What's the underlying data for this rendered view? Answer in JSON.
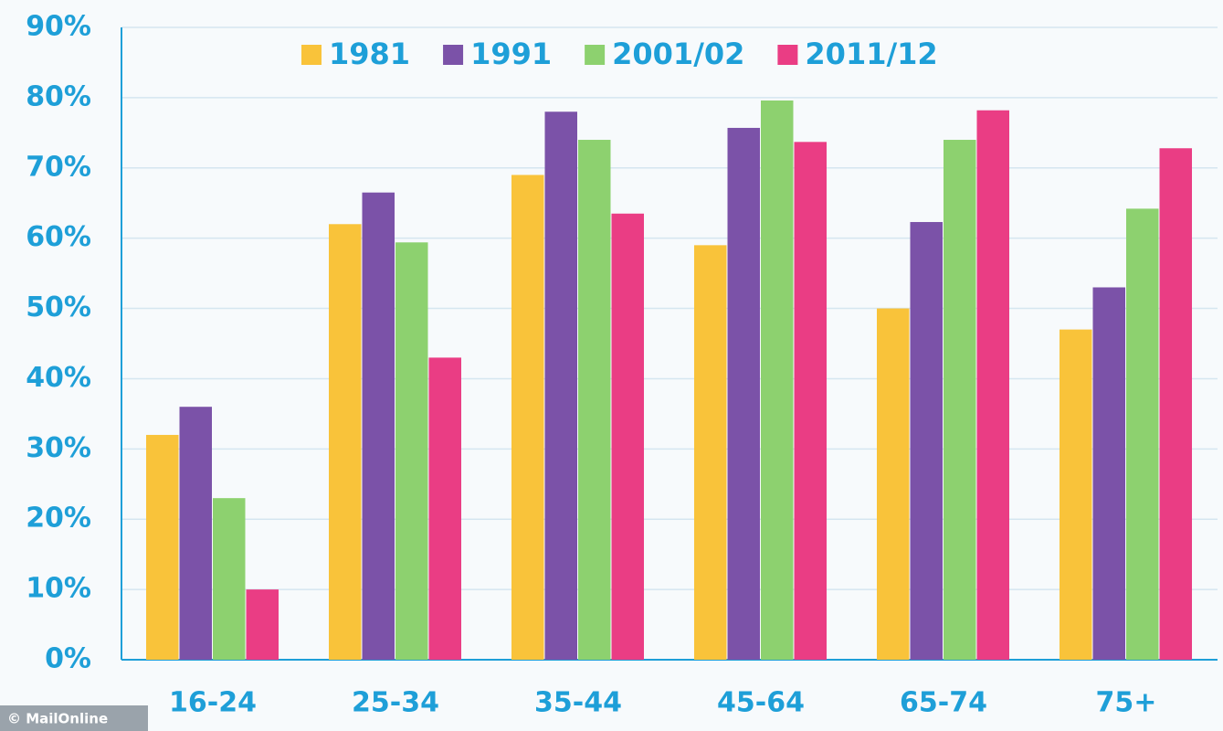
{
  "chart_data": {
    "type": "bar",
    "categories": [
      "16-24",
      "25-34",
      "35-44",
      "45-64",
      "65-74",
      "75+"
    ],
    "series": [
      {
        "name": "1981",
        "color": "#f9c33a",
        "values": [
          32,
          62,
          69,
          59,
          50,
          47
        ]
      },
      {
        "name": "1991",
        "color": "#7b52a8",
        "values": [
          36,
          66.5,
          78,
          75.7,
          62.3,
          53
        ]
      },
      {
        "name": "2001/02",
        "color": "#8dd16f",
        "values": [
          23,
          59.4,
          74,
          79.6,
          74,
          64.2
        ]
      },
      {
        "name": "2011/12",
        "color": "#ea3d84",
        "values": [
          10,
          43,
          63.5,
          73.7,
          78.2,
          72.8
        ]
      }
    ],
    "ylim": [
      0,
      90
    ],
    "yticks": [
      {
        "value": 0,
        "label": "0%"
      },
      {
        "value": 10,
        "label": "10%"
      },
      {
        "value": 20,
        "label": "20%"
      },
      {
        "value": 30,
        "label": "30%"
      },
      {
        "value": 40,
        "label": "40%"
      },
      {
        "value": 50,
        "label": "50%"
      },
      {
        "value": 60,
        "label": "60%"
      },
      {
        "value": 70,
        "label": "70%"
      },
      {
        "value": 80,
        "label": "80%"
      },
      {
        "value": 90,
        "label": "90%"
      }
    ],
    "grid": true,
    "legend": "top",
    "credit": "© MailOnline"
  }
}
